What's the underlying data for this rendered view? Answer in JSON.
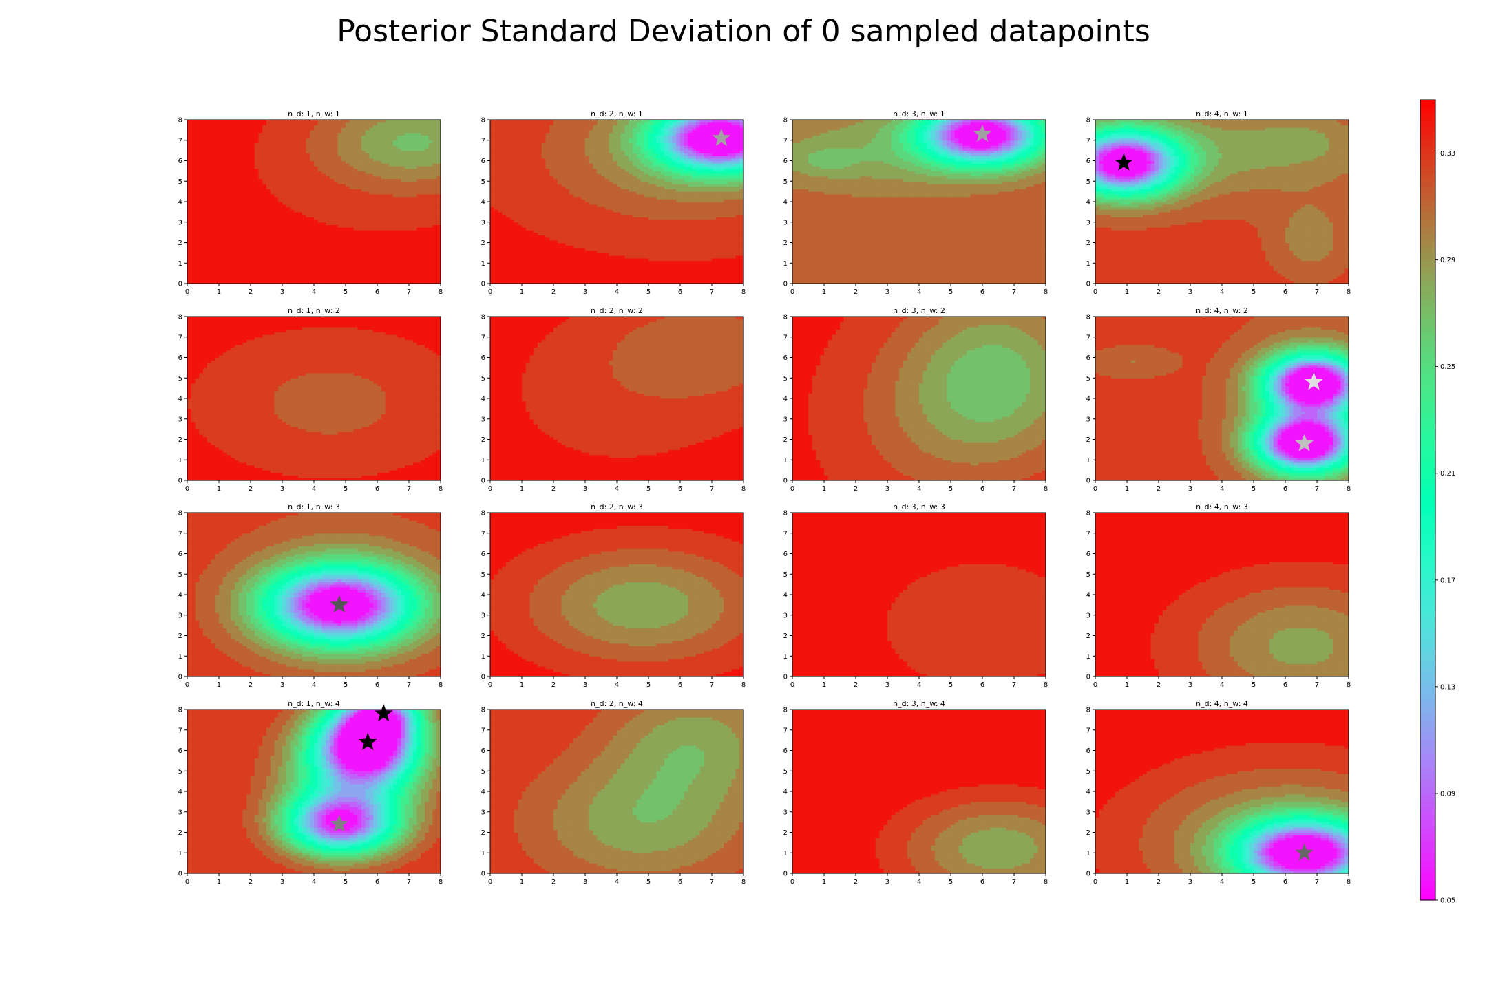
{
  "title": "Posterior Standard Deviation of 0 sampled datapoints",
  "chart_data": {
    "type": "heatmap",
    "title": "Posterior Standard Deviation of 0 sampled datapoints",
    "colormap": "rainbow",
    "xlim": [
      0,
      8
    ],
    "ylim": [
      0,
      8
    ],
    "xticks": [
      "0",
      "1",
      "2",
      "3",
      "4",
      "5",
      "6",
      "7",
      "8"
    ],
    "yticks": [
      "0",
      "1",
      "2",
      "3",
      "4",
      "5",
      "6",
      "7",
      "8"
    ],
    "colorbar": {
      "range": [
        0.05,
        0.35
      ],
      "ticks": [
        "0.05",
        "0.09",
        "0.13",
        "0.17",
        "0.21",
        "0.25",
        "0.29",
        "0.33"
      ],
      "tick_values": [
        0.05,
        0.09,
        0.13,
        0.17,
        0.21,
        0.25,
        0.29,
        0.33
      ]
    },
    "panels": [
      {
        "title": "n_d: 1, n_w: 1",
        "base": 0.345,
        "bumps": [
          {
            "x": 7.2,
            "y": 7.0,
            "amp": -0.06,
            "sx": 2.0,
            "sy": 1.5
          },
          {
            "x": 6.0,
            "y": 5.5,
            "amp": -0.015,
            "sx": 3.5,
            "sy": 3.0
          }
        ],
        "stars": []
      },
      {
        "title": "n_d: 2, n_w: 1",
        "base": 0.34,
        "bumps": [
          {
            "x": 7.3,
            "y": 7.1,
            "amp": -0.3,
            "sx": 1.4,
            "sy": 1.1
          },
          {
            "x": 6.0,
            "y": 6.5,
            "amp": -0.05,
            "sx": 3.2,
            "sy": 2.5
          }
        ],
        "stars": [
          {
            "x": 7.3,
            "y": 7.1,
            "color": "#a0a0a0"
          }
        ]
      },
      {
        "title": "n_d: 3, n_w: 1",
        "base": 0.32,
        "bumps": [
          {
            "x": 6.0,
            "y": 7.3,
            "amp": -0.28,
            "sx": 1.3,
            "sy": 1.0
          },
          {
            "x": 3.0,
            "y": 6.5,
            "amp": -0.04,
            "sx": 3.5,
            "sy": 1.6
          },
          {
            "x": 1.0,
            "y": 6.0,
            "amp": -0.02,
            "sx": 0.8,
            "sy": 0.5
          }
        ],
        "stars": [
          {
            "x": 6.0,
            "y": 7.3,
            "color": "#a0a0a0"
          }
        ]
      },
      {
        "title": "n_d: 4, n_w: 1",
        "base": 0.325,
        "bumps": [
          {
            "x": 0.9,
            "y": 5.9,
            "amp": -0.29,
            "sx": 1.2,
            "sy": 1.1
          },
          {
            "x": 4.5,
            "y": 6.5,
            "amp": -0.04,
            "sx": 3.5,
            "sy": 1.6
          },
          {
            "x": 6.5,
            "y": 7.0,
            "amp": -0.015,
            "sx": 0.8,
            "sy": 0.6
          },
          {
            "x": 6.8,
            "y": 2.2,
            "amp": -0.03,
            "sx": 0.8,
            "sy": 1.2
          }
        ],
        "stars": [
          {
            "x": 0.9,
            "y": 5.9,
            "color": "#000000"
          }
        ]
      },
      {
        "title": "n_d: 1, n_w: 2",
        "base": 0.345,
        "bumps": [
          {
            "x": 4.5,
            "y": 3.8,
            "amp": -0.03,
            "sx": 3.0,
            "sy": 2.5
          }
        ],
        "stars": []
      },
      {
        "title": "n_d: 2, n_w: 2",
        "base": 0.345,
        "bumps": [
          {
            "x": 7.0,
            "y": 6.5,
            "amp": -0.03,
            "sx": 2.5,
            "sy": 2.0
          },
          {
            "x": 4.0,
            "y": 4.0,
            "amp": -0.015,
            "sx": 3.0,
            "sy": 3.0
          }
        ],
        "stars": []
      },
      {
        "title": "n_d: 3, n_w: 2",
        "base": 0.34,
        "bumps": [
          {
            "x": 6.5,
            "y": 5.0,
            "amp": -0.07,
            "sx": 2.0,
            "sy": 3.0
          },
          {
            "x": 4.0,
            "y": 3.0,
            "amp": -0.02,
            "sx": 2.0,
            "sy": 3.0
          }
        ],
        "stars": []
      },
      {
        "title": "n_d: 4, n_w: 2",
        "base": 0.325,
        "bumps": [
          {
            "x": 6.9,
            "y": 4.8,
            "amp": -0.27,
            "sx": 1.0,
            "sy": 0.9
          },
          {
            "x": 6.6,
            "y": 1.8,
            "amp": -0.27,
            "sx": 1.0,
            "sy": 0.9
          },
          {
            "x": 6.8,
            "y": 3.3,
            "amp": -0.1,
            "sx": 1.4,
            "sy": 2.2
          },
          {
            "x": 1.2,
            "y": 5.8,
            "amp": -0.02,
            "sx": 0.9,
            "sy": 0.5
          }
        ],
        "stars": [
          {
            "x": 6.9,
            "y": 4.8,
            "color": "#e0e0e0"
          },
          {
            "x": 6.6,
            "y": 1.8,
            "color": "#c0c0c0"
          }
        ]
      },
      {
        "title": "n_d: 1, n_w: 3",
        "base": 0.34,
        "bumps": [
          {
            "x": 4.8,
            "y": 3.5,
            "amp": -0.29,
            "sx": 1.6,
            "sy": 1.3
          },
          {
            "x": 5.0,
            "y": 4.0,
            "amp": -0.04,
            "sx": 3.5,
            "sy": 3.5
          }
        ],
        "stars": [
          {
            "x": 4.8,
            "y": 3.5,
            "color": "#555555"
          }
        ]
      },
      {
        "title": "n_d: 2, n_w: 3",
        "base": 0.345,
        "bumps": [
          {
            "x": 4.8,
            "y": 3.5,
            "amp": -0.065,
            "sx": 2.6,
            "sy": 2.0
          }
        ],
        "stars": []
      },
      {
        "title": "n_d: 3, n_w: 3",
        "base": 0.35,
        "bumps": [
          {
            "x": 6.0,
            "y": 2.5,
            "amp": -0.025,
            "sx": 3.0,
            "sy": 3.0
          }
        ],
        "stars": []
      },
      {
        "title": "n_d: 4, n_w: 3",
        "base": 0.345,
        "bumps": [
          {
            "x": 6.5,
            "y": 1.5,
            "amp": -0.06,
            "sx": 2.5,
            "sy": 2.2
          }
        ],
        "stars": []
      },
      {
        "title": "n_d: 1, n_w: 4",
        "base": 0.335,
        "bumps": [
          {
            "x": 5.7,
            "y": 6.4,
            "amp": -0.28,
            "sx": 1.1,
            "sy": 1.3
          },
          {
            "x": 6.2,
            "y": 7.8,
            "amp": -0.15,
            "sx": 0.8,
            "sy": 0.8
          },
          {
            "x": 4.8,
            "y": 2.4,
            "amp": -0.22,
            "sx": 1.2,
            "sy": 1.0
          },
          {
            "x": 5.2,
            "y": 4.5,
            "amp": -0.12,
            "sx": 1.5,
            "sy": 2.0
          }
        ],
        "stars": [
          {
            "x": 5.7,
            "y": 6.4,
            "color": "#000000"
          },
          {
            "x": 6.2,
            "y": 7.8,
            "color": "#000000"
          },
          {
            "x": 4.8,
            "y": 2.4,
            "color": "#808080"
          }
        ]
      },
      {
        "title": "n_d: 2, n_w: 4",
        "base": 0.335,
        "bumps": [
          {
            "x": 4.8,
            "y": 2.5,
            "amp": -0.055,
            "sx": 2.5,
            "sy": 2.2
          },
          {
            "x": 6.5,
            "y": 6.5,
            "amp": -0.05,
            "sx": 2.0,
            "sy": 2.0
          }
        ],
        "stars": []
      },
      {
        "title": "n_d: 3, n_w: 4",
        "base": 0.35,
        "bumps": [
          {
            "x": 6.5,
            "y": 1.2,
            "amp": -0.07,
            "sx": 2.2,
            "sy": 1.8
          }
        ],
        "stars": []
      },
      {
        "title": "n_d: 4, n_w: 4",
        "base": 0.35,
        "bumps": [
          {
            "x": 6.6,
            "y": 1.0,
            "amp": -0.29,
            "sx": 1.4,
            "sy": 1.1
          },
          {
            "x": 6.0,
            "y": 1.5,
            "amp": -0.07,
            "sx": 3.5,
            "sy": 2.8
          }
        ],
        "stars": [
          {
            "x": 6.6,
            "y": 1.0,
            "color": "#666666"
          }
        ]
      }
    ]
  }
}
